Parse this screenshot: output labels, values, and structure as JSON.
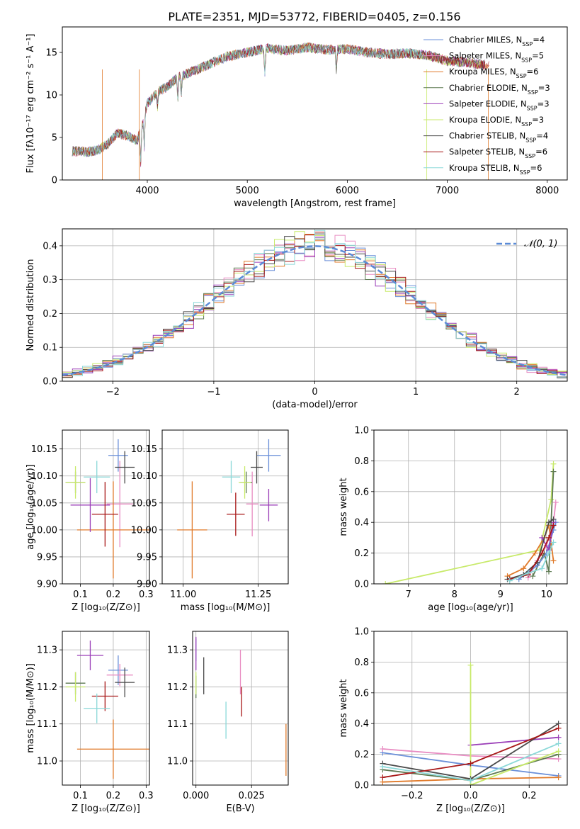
{
  "figure_title": "PLATE=2351, MJD=53772, FIBERID=0405, z=0.156",
  "colors": {
    "Chabrier MILES": "#6a8fd8",
    "Salpeter MILES": "#e88cc2",
    "Kroupa MILES": "#e07a2a",
    "Chabrier ELODIE": "#5e7a52",
    "Salpeter ELODIE": "#9b3fb8",
    "Kroupa ELODIE": "#c8ea6a",
    "Chabrier STELIB": "#4a4a4a",
    "Salpeter STELIB": "#a81818",
    "Kroupa STELIB": "#8ad8d8",
    "normal": "#5b8bd6"
  },
  "chart_data": [
    {
      "id": "spectrum",
      "type": "line",
      "title": "PLATE=2351, MJD=53772, FIBERID=0405, z=0.156",
      "xlabel": "wavelength [Angstrom, rest frame]",
      "ylabel": "Flux [fλ10⁻¹⁷ erg cm⁻² s⁻¹ A⁻¹]",
      "xlim": [
        3150,
        8200
      ],
      "ylim": [
        0,
        18
      ],
      "xticks": [
        4000,
        5000,
        6000,
        7000,
        8000
      ],
      "yticks": [
        0,
        5,
        10,
        15
      ],
      "legend_placement": "right",
      "legend": [
        {
          "main": "Chabrier MILES, N",
          "sub": "SSP",
          "tail": "=4",
          "series": "Chabrier MILES"
        },
        {
          "main": "Salpeter MILES, N",
          "sub": "SSP",
          "tail": "=5",
          "series": "Salpeter MILES"
        },
        {
          "main": "Kroupa MILES, N",
          "sub": "SSP",
          "tail": "=6",
          "series": "Kroupa MILES"
        },
        {
          "main": "Chabrier ELODIE, N",
          "sub": "SSP",
          "tail": "=3",
          "series": "Chabrier ELODIE"
        },
        {
          "main": "Salpeter ELODIE, N",
          "sub": "SSP",
          "tail": "=3",
          "series": "Salpeter ELODIE"
        },
        {
          "main": "Kroupa ELODIE, N",
          "sub": "SSP",
          "tail": "=3",
          "series": "Kroupa ELODIE"
        },
        {
          "main": "Chabrier STELIB, N",
          "sub": "SSP",
          "tail": "=4",
          "series": "Chabrier STELIB"
        },
        {
          "main": "Salpeter STELIB, N",
          "sub": "SSP",
          "tail": "=6",
          "series": "Salpeter STELIB"
        },
        {
          "main": "Kroupa STELIB, N",
          "sub": "SSP",
          "tail": "=6",
          "series": "Kroupa STELIB"
        }
      ],
      "continuum": {
        "x": [
          3250,
          3400,
          3500,
          3600,
          3700,
          3800,
          3900,
          3950,
          4000,
          4100,
          4200,
          4300,
          4400,
          4600,
          4800,
          5000,
          5200,
          5400,
          5600,
          5800,
          6000,
          6200,
          6400,
          6600,
          6800,
          7000,
          7200,
          7400
        ],
        "y": [
          3.4,
          3.3,
          3.5,
          4.2,
          5.5,
          5.2,
          4.6,
          6.5,
          9.0,
          10.3,
          11.0,
          12.0,
          12.5,
          13.5,
          14.5,
          15.0,
          15.5,
          15.2,
          15.6,
          15.3,
          15.4,
          15.0,
          14.8,
          14.9,
          14.7,
          14.0,
          13.8,
          13.5
        ]
      },
      "absorption_lines": [
        {
          "x": 3934,
          "y": 2.0
        },
        {
          "x": 3969,
          "y": 3.5
        },
        {
          "x": 4102,
          "y": 8.5
        },
        {
          "x": 4305,
          "y": 9.5
        },
        {
          "x": 4340,
          "y": 10.0
        },
        {
          "x": 5175,
          "y": 12.5
        },
        {
          "x": 5890,
          "y": 13.0
        }
      ]
    },
    {
      "id": "residual-histogram",
      "type": "step",
      "xlabel": "(data-model)/error",
      "ylabel": "Normed distribution",
      "xlim": [
        -2.5,
        2.5
      ],
      "ylim": [
        0,
        0.45
      ],
      "xticks": [
        -2,
        -1,
        0,
        1,
        2
      ],
      "yticks": [
        0.0,
        0.1,
        0.2,
        0.3,
        0.4
      ],
      "grid": true,
      "legend_placement": "top-right",
      "legend": [
        {
          "label": "𝒩(0, 1)",
          "series": "normal"
        }
      ],
      "bin_width": 0.1,
      "curve": {
        "mu": 0,
        "sigma": 1
      }
    },
    {
      "id": "age-vs-Z",
      "type": "errorbar",
      "xlabel": "Z [log₁₀(Z/Z⊙)]",
      "ylabel": "age  [log₁₀(age/yr)]",
      "xlim": [
        0.045,
        0.31
      ],
      "ylim": [
        9.9,
        10.185
      ],
      "xticks": [
        0.1,
        0.2,
        0.3
      ],
      "yticks": [
        9.9,
        9.95,
        10.0,
        10.05,
        10.1,
        10.15
      ],
      "grid": true,
      "points": [
        {
          "series": "Chabrier MILES",
          "x": 0.215,
          "y": 10.138,
          "xerr": 0.03,
          "yerr": 0.03
        },
        {
          "series": "Salpeter MILES",
          "x": 0.22,
          "y": 10.048,
          "xerr": 0.04,
          "yerr": 0.08
        },
        {
          "series": "Kroupa MILES",
          "x": 0.2,
          "y": 10.0,
          "xerr": 0.11,
          "yerr": 0.09
        },
        {
          "series": "Chabrier ELODIE",
          "x": 0.085,
          "y": 10.088,
          "xerr": 0.03,
          "yerr": 0.02
        },
        {
          "series": "Salpeter ELODIE",
          "x": 0.13,
          "y": 10.046,
          "xerr": 0.06,
          "yerr": 0.05
        },
        {
          "series": "Kroupa ELODIE",
          "x": 0.085,
          "y": 10.088,
          "xerr": 0.03,
          "yerr": 0.03
        },
        {
          "series": "Chabrier STELIB",
          "x": 0.235,
          "y": 10.116,
          "xerr": 0.03,
          "yerr": 0.03
        },
        {
          "series": "Salpeter STELIB",
          "x": 0.175,
          "y": 10.029,
          "xerr": 0.04,
          "yerr": 0.06
        },
        {
          "series": "Kroupa STELIB",
          "x": 0.15,
          "y": 10.098,
          "xerr": 0.04,
          "yerr": 0.03
        }
      ]
    },
    {
      "id": "age-vs-mass",
      "type": "errorbar",
      "xlabel": "mass [log₁₀(M/M⊙)]",
      "ylabel": "",
      "xlim": [
        10.93,
        11.35
      ],
      "ylim": [
        9.9,
        10.185
      ],
      "xticks": [
        11.0,
        11.25
      ],
      "xticklabels": [
        "11.00",
        "11.25"
      ],
      "yticks": [
        9.9,
        9.95,
        10.0,
        10.05,
        10.1,
        10.15
      ],
      "grid": true,
      "points": [
        {
          "series": "Chabrier MILES",
          "x": 11.285,
          "y": 10.138,
          "xerr": 0.04,
          "yerr": 0.03
        },
        {
          "series": "Salpeter MILES",
          "x": 11.23,
          "y": 10.048,
          "xerr": 0.02,
          "yerr": 0.06
        },
        {
          "series": "Kroupa MILES",
          "x": 11.03,
          "y": 10.0,
          "xerr": 0.05,
          "yerr": 0.09
        },
        {
          "series": "Chabrier ELODIE",
          "x": 11.21,
          "y": 10.088,
          "xerr": 0.02,
          "yerr": 0.02
        },
        {
          "series": "Salpeter ELODIE",
          "x": 11.285,
          "y": 10.046,
          "xerr": 0.03,
          "yerr": 0.03
        },
        {
          "series": "Kroupa ELODIE",
          "x": 11.205,
          "y": 10.088,
          "xerr": 0.02,
          "yerr": 0.03
        },
        {
          "series": "Chabrier STELIB",
          "x": 11.245,
          "y": 10.116,
          "xerr": 0.02,
          "yerr": 0.03
        },
        {
          "series": "Salpeter STELIB",
          "x": 11.175,
          "y": 10.029,
          "xerr": 0.03,
          "yerr": 0.04
        },
        {
          "series": "Kroupa STELIB",
          "x": 11.16,
          "y": 10.098,
          "xerr": 0.03,
          "yerr": 0.03
        }
      ]
    },
    {
      "id": "mass-weight-vs-age",
      "type": "line",
      "xlabel": "age  [log₁₀(age/yr)]",
      "ylabel": "mass weight",
      "xlim": [
        6.25,
        10.45
      ],
      "ylim": [
        0,
        1.0
      ],
      "xticks": [
        7,
        8,
        9,
        10
      ],
      "yticks": [
        0.0,
        0.2,
        0.4,
        0.6,
        0.8,
        1.0
      ],
      "grid": true,
      "series": [
        {
          "series": "Kroupa ELODIE",
          "x": [
            6.5,
            9.85,
            10.1,
            10.15
          ],
          "y": [
            0.0,
            0.22,
            0.55,
            0.78
          ]
        },
        {
          "series": "Chabrier ELODIE",
          "x": [
            9.7,
            9.95,
            10.05,
            10.15
          ],
          "y": [
            0.05,
            0.2,
            0.08,
            0.73
          ]
        },
        {
          "series": "Kroupa MILES",
          "x": [
            9.15,
            9.5,
            9.75,
            9.95,
            10.05,
            10.15
          ],
          "y": [
            0.05,
            0.1,
            0.2,
            0.3,
            0.38,
            0.15
          ]
        },
        {
          "series": "Salpeter MILES",
          "x": [
            9.6,
            9.8,
            10.0,
            10.15,
            10.2
          ],
          "y": [
            0.04,
            0.15,
            0.25,
            0.4,
            0.53
          ]
        },
        {
          "series": "Chabrier MILES",
          "x": [
            9.4,
            9.8,
            10.0,
            10.15,
            10.2
          ],
          "y": [
            0.03,
            0.12,
            0.2,
            0.35,
            0.4
          ]
        },
        {
          "series": "Salpeter ELODIE",
          "x": [
            9.9,
            10.05,
            10.15
          ],
          "y": [
            0.3,
            0.22,
            0.4
          ]
        },
        {
          "series": "Chabrier STELIB",
          "x": [
            9.15,
            9.5,
            9.8,
            10.05,
            10.15
          ],
          "y": [
            0.03,
            0.06,
            0.14,
            0.4,
            0.42
          ]
        },
        {
          "series": "Salpeter STELIB",
          "x": [
            9.2,
            9.6,
            9.9,
            10.05,
            10.15
          ],
          "y": [
            0.03,
            0.06,
            0.2,
            0.3,
            0.38
          ]
        },
        {
          "series": "Kroupa STELIB",
          "x": [
            9.2,
            9.6,
            9.9,
            10.05,
            10.15
          ],
          "y": [
            0.02,
            0.07,
            0.1,
            0.2,
            0.27
          ]
        }
      ]
    },
    {
      "id": "mass-vs-Z",
      "type": "errorbar",
      "xlabel": "Z [log₁₀(Z/Z⊙)]",
      "ylabel": "mass [log₁₀(M/M⊙)]",
      "xlim": [
        0.045,
        0.31
      ],
      "ylim": [
        10.935,
        11.35
      ],
      "xticks": [
        0.1,
        0.2,
        0.3
      ],
      "yticks": [
        11.0,
        11.1,
        11.2,
        11.3
      ],
      "grid": true,
      "points": [
        {
          "series": "Chabrier MILES",
          "x": 0.215,
          "y": 11.245,
          "xerr": 0.03,
          "yerr": 0.04
        },
        {
          "series": "Salpeter MILES",
          "x": 0.22,
          "y": 11.232,
          "xerr": 0.04,
          "yerr": 0.03
        },
        {
          "series": "Kroupa MILES",
          "x": 0.2,
          "y": 11.032,
          "xerr": 0.11,
          "yerr": 0.08
        },
        {
          "series": "Chabrier ELODIE",
          "x": 0.085,
          "y": 11.21,
          "xerr": 0.03,
          "yerr": 0.03
        },
        {
          "series": "Salpeter ELODIE",
          "x": 0.13,
          "y": 11.285,
          "xerr": 0.04,
          "yerr": 0.04
        },
        {
          "series": "Kroupa ELODIE",
          "x": 0.085,
          "y": 11.2,
          "xerr": 0.03,
          "yerr": 0.04
        },
        {
          "series": "Chabrier STELIB",
          "x": 0.235,
          "y": 11.212,
          "xerr": 0.03,
          "yerr": 0.04
        },
        {
          "series": "Salpeter STELIB",
          "x": 0.175,
          "y": 11.175,
          "xerr": 0.04,
          "yerr": 0.04
        },
        {
          "series": "Kroupa STELIB",
          "x": 0.15,
          "y": 11.142,
          "xerr": 0.04,
          "yerr": 0.04
        }
      ]
    },
    {
      "id": "mass-vs-EBV",
      "type": "errorbar",
      "xlabel": "E(B-V)",
      "ylabel": "",
      "xlim": [
        -0.0015,
        0.0415
      ],
      "ylim": [
        10.935,
        11.35
      ],
      "xticks": [
        0.0,
        0.025
      ],
      "xticklabels": [
        "0.000",
        "0.025"
      ],
      "yticks": [
        11.0,
        11.1,
        11.2,
        11.3
      ],
      "grid": true,
      "points": [
        {
          "series": "Chabrier MILES",
          "x": 0.0,
          "y": 11.3,
          "xerr": 0,
          "yerr": 0.03
        },
        {
          "series": "Salpeter MILES",
          "x": 0.02,
          "y": 11.24,
          "xerr": 0,
          "yerr": 0.06
        },
        {
          "series": "Kroupa MILES",
          "x": 0.0405,
          "y": 11.03,
          "xerr": 0,
          "yerr": 0.07
        },
        {
          "series": "Chabrier ELODIE",
          "x": 0.0,
          "y": 11.2,
          "xerr": 0,
          "yerr": 0.03
        },
        {
          "series": "Salpeter ELODIE",
          "x": 0.0,
          "y": 11.29,
          "xerr": 0,
          "yerr": 0.045
        },
        {
          "series": "Kroupa ELODIE",
          "x": 0.0,
          "y": 11.21,
          "xerr": 0,
          "yerr": 0.03
        },
        {
          "series": "Chabrier STELIB",
          "x": 0.0035,
          "y": 11.23,
          "xerr": 0,
          "yerr": 0.05
        },
        {
          "series": "Salpeter STELIB",
          "x": 0.0205,
          "y": 11.16,
          "xerr": 0,
          "yerr": 0.04
        },
        {
          "series": "Kroupa STELIB",
          "x": 0.0135,
          "y": 11.11,
          "xerr": 0,
          "yerr": 0.05
        }
      ]
    },
    {
      "id": "mass-weight-vs-Z",
      "type": "line",
      "xlabel": "Z [log₁₀(Z/Z⊙)]",
      "ylabel": "mass weight",
      "xlim": [
        -0.33,
        0.33
      ],
      "ylim": [
        0,
        1.0
      ],
      "xticks": [
        -0.2,
        0.0,
        0.2
      ],
      "yticks": [
        0.0,
        0.2,
        0.4,
        0.6,
        0.8,
        1.0
      ],
      "grid": true,
      "series": [
        {
          "series": "Chabrier MILES",
          "x": [
            -0.3,
            0.0,
            0.3
          ],
          "y": [
            0.21,
            0.13,
            0.06
          ]
        },
        {
          "series": "Salpeter MILES",
          "x": [
            -0.3,
            0.0,
            0.3
          ],
          "y": [
            0.235,
            0.19,
            0.17
          ]
        },
        {
          "series": "Kroupa MILES",
          "x": [
            -0.3,
            0.0,
            0.3
          ],
          "y": [
            0.02,
            0.04,
            0.05
          ]
        },
        {
          "series": "Chabrier ELODIE",
          "x": [
            -0.3,
            0.0,
            0.3
          ],
          "y": [
            0.1,
            0.03,
            0.2
          ]
        },
        {
          "series": "Salpeter ELODIE",
          "x": [
            0.0,
            0.3
          ],
          "y": [
            0.26,
            0.31
          ]
        },
        {
          "series": "Kroupa ELODIE",
          "x": [
            0.0,
            0.0,
            0.3
          ],
          "y": [
            0.78,
            0.0,
            0.22
          ]
        },
        {
          "series": "Chabrier STELIB",
          "x": [
            -0.3,
            0.0,
            0.3
          ],
          "y": [
            0.14,
            0.04,
            0.4
          ]
        },
        {
          "series": "Salpeter STELIB",
          "x": [
            -0.3,
            0.0,
            0.3
          ],
          "y": [
            0.05,
            0.14,
            0.37
          ]
        },
        {
          "series": "Kroupa STELIB",
          "x": [
            -0.3,
            0.0,
            0.3
          ],
          "y": [
            0.12,
            0.03,
            0.27
          ]
        }
      ]
    }
  ]
}
